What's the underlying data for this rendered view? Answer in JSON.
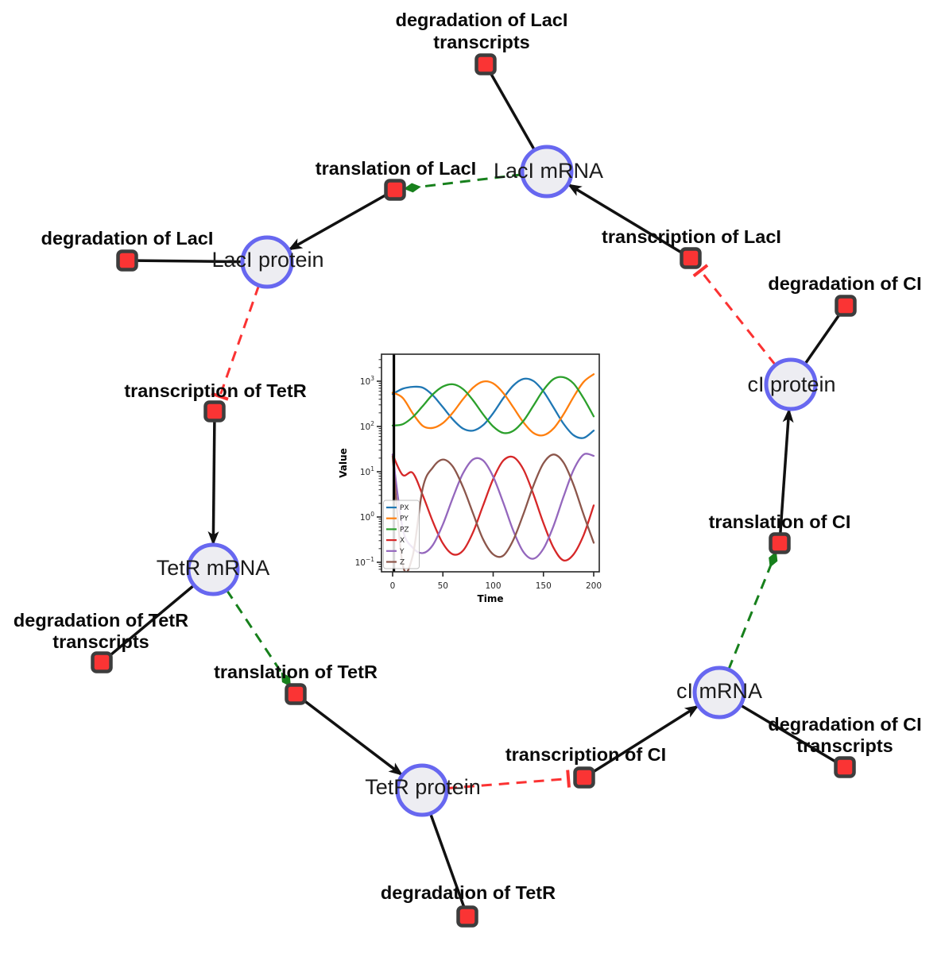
{
  "diagram": {
    "colors": {
      "species_fill": "#ededf2",
      "species_border": "#6767f0",
      "reaction_fill": "#fa3434",
      "reaction_border": "#3d3d3d",
      "activation_edge": "#17801c",
      "inhibition_edge": "#fb3232",
      "plain_edge": "#111111"
    },
    "species": [
      {
        "id": "laci-mrna",
        "label": "LacI mRNA"
      },
      {
        "id": "laci-protein",
        "label": "LacI protein"
      },
      {
        "id": "ci-protein",
        "label": "cI protein"
      },
      {
        "id": "tetr-mrna",
        "label": "TetR mRNA"
      },
      {
        "id": "tetr-protein",
        "label": "TetR protein"
      },
      {
        "id": "ci-mrna",
        "label": "cI mRNA"
      }
    ],
    "reactions": [
      {
        "id": "degradation-laci-transcripts",
        "line1": "degradation of LacI",
        "line2": "transcripts"
      },
      {
        "id": "translation-laci",
        "line1": "translation of LacI"
      },
      {
        "id": "degradation-laci",
        "line1": "degradation of LacI"
      },
      {
        "id": "transcription-laci",
        "line1": "transcription of LacI"
      },
      {
        "id": "degradation-ci",
        "line1": "degradation of CI"
      },
      {
        "id": "transcription-tetr",
        "line1": "transcription of TetR"
      },
      {
        "id": "degradation-tetr-transcripts",
        "line1": "degradation of TetR",
        "line2": "transcripts"
      },
      {
        "id": "translation-tetr",
        "line1": "translation of TetR"
      },
      {
        "id": "degradation-tetr",
        "line1": "degradation of TetR"
      },
      {
        "id": "transcription-ci",
        "line1": "transcription of CI"
      },
      {
        "id": "degradation-ci-transcripts",
        "line1": "degradation of CI",
        "line2": "transcripts"
      },
      {
        "id": "translation-ci",
        "line1": "translation of CI"
      }
    ]
  },
  "chart_data": {
    "type": "line",
    "title": "",
    "xlabel": "Time",
    "ylabel": "Value",
    "x_ticks": [
      0,
      50,
      100,
      150,
      200
    ],
    "y_scale": "log",
    "y_tick_exponents": [
      3,
      2,
      1,
      0,
      -1
    ],
    "xlim": [
      -10,
      210
    ],
    "ylim": [
      0.062,
      3900
    ],
    "grid": false,
    "legend_position": "lower left",
    "axvline_x": 0,
    "x": [
      0,
      10,
      20,
      30,
      40,
      50,
      60,
      70,
      80,
      90,
      100,
      110,
      120,
      130,
      140,
      150,
      160,
      170,
      180,
      190,
      200
    ],
    "series": [
      {
        "name": "PX",
        "color": "#1f77b4",
        "values": [
          520,
          680,
          750,
          719,
          487,
          266,
          142,
          90,
          81,
          107,
          196,
          418,
          802,
          1124,
          1012,
          593,
          264,
          115,
          64,
          56,
          81
        ]
      },
      {
        "name": "PY",
        "color": "#ff7f0e",
        "values": [
          560,
          430,
          195,
          103,
          93,
          119,
          204,
          400,
          721,
          980,
          893,
          552,
          265,
          124,
          72,
          64,
          90,
          185,
          450,
          968,
          1429
        ]
      },
      {
        "name": "PZ",
        "color": "#2ca02c",
        "values": [
          105,
          112,
          161,
          284,
          513,
          762,
          855,
          671,
          378,
          185,
          100,
          72,
          80,
          132,
          287,
          638,
          1112,
          1224,
          885,
          416,
          167
        ]
      },
      {
        "name": "X",
        "color": "#d62728",
        "values": [
          24,
          8.5,
          9.4,
          3.0,
          0.79,
          0.26,
          0.15,
          0.18,
          0.46,
          1.8,
          6.9,
          17.5,
          21,
          11.3,
          3.2,
          0.73,
          0.21,
          0.11,
          0.15,
          0.4,
          1.8
        ]
      },
      {
        "name": "Y",
        "color": "#9467bd",
        "values": [
          24,
          0.56,
          0.21,
          0.16,
          0.24,
          0.69,
          2.7,
          9.2,
          18.7,
          17.7,
          7.8,
          2.1,
          0.5,
          0.17,
          0.12,
          0.2,
          0.63,
          2.8,
          11,
          24,
          22.4
        ]
      },
      {
        "name": "Z",
        "color": "#8c564b",
        "values": [
          22,
          0.09,
          0.14,
          4.4,
          12.4,
          18.6,
          12.9,
          4.6,
          1.2,
          0.32,
          0.15,
          0.14,
          0.31,
          1.15,
          4.9,
          15.4,
          24,
          16,
          5.1,
          1.12,
          0.27
        ]
      }
    ]
  }
}
